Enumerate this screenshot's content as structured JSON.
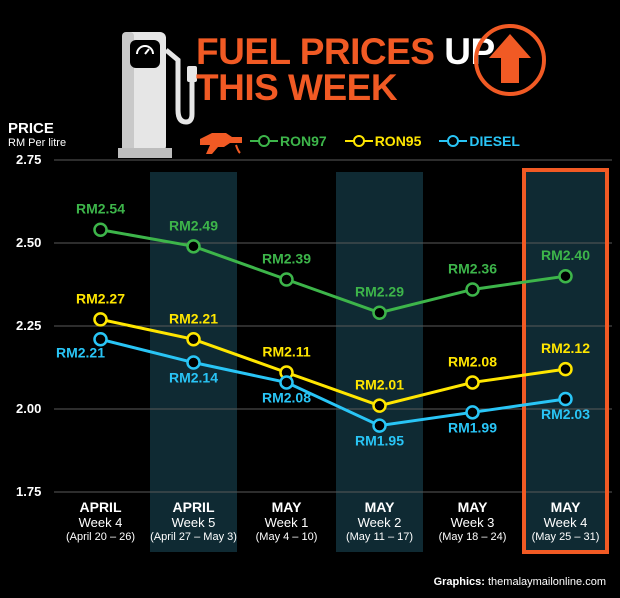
{
  "title": {
    "part1": "FUEL PRICES",
    "part2": "UP",
    "part3": "THIS WEEK"
  },
  "colors": {
    "accent": "#f15a24",
    "ron97": "#3db54a",
    "ron95": "#ffe600",
    "diesel": "#29c5f6",
    "highlight_col": "#0f2a33"
  },
  "icons": {
    "pump": "fuel-pump-icon",
    "arrow": "up-arrow-icon",
    "nozzle": "fuel-nozzle-icon"
  },
  "credit": {
    "label": "Graphics:",
    "source": "themalaymailonline.com"
  },
  "chart_data": {
    "type": "line",
    "title": "FUEL PRICES UP THIS WEEK",
    "ylabel": "PRICE",
    "yunit": "RM Per litre",
    "ylim": [
      1.75,
      2.75
    ],
    "yticks": [
      "1.75",
      "2.00",
      "2.25",
      "2.50",
      "2.75"
    ],
    "categories": [
      {
        "month": "APRIL",
        "week": "Week 4",
        "dates": "(April 20 – 26)"
      },
      {
        "month": "APRIL",
        "week": "Week 5",
        "dates": "(April 27 – May 3)"
      },
      {
        "month": "MAY",
        "week": "Week 1",
        "dates": "(May 4 – 10)"
      },
      {
        "month": "MAY",
        "week": "Week 2",
        "dates": "(May 11 – 17)"
      },
      {
        "month": "MAY",
        "week": "Week 3",
        "dates": "(May 18 – 24)"
      },
      {
        "month": "MAY",
        "week": "Week 4",
        "dates": "(May 25 – 31)"
      }
    ],
    "series": [
      {
        "name": "RON97",
        "key": "ron97",
        "values": [
          2.54,
          2.49,
          2.39,
          2.29,
          2.36,
          2.4
        ],
        "labels": [
          "RM2.54",
          "RM2.49",
          "RM2.39",
          "RM2.29",
          "RM2.36",
          "RM2.40"
        ]
      },
      {
        "name": "RON95",
        "key": "ron95",
        "values": [
          2.27,
          2.21,
          2.11,
          2.01,
          2.08,
          2.12
        ],
        "labels": [
          "RM2.27",
          "RM2.21",
          "RM2.11",
          "RM2.01",
          "RM2.08",
          "RM2.12"
        ]
      },
      {
        "name": "DIESEL",
        "key": "diesel",
        "values": [
          2.21,
          2.14,
          2.08,
          1.95,
          1.99,
          2.03
        ],
        "labels": [
          "RM2.21",
          "RM2.14",
          "RM2.08",
          "RM1.95",
          "RM1.99",
          "RM2.03"
        ]
      }
    ],
    "shaded_columns": [
      1,
      3,
      5
    ],
    "highlighted_column": 5,
    "legend": [
      "RON97",
      "RON95",
      "DIESEL"
    ]
  }
}
